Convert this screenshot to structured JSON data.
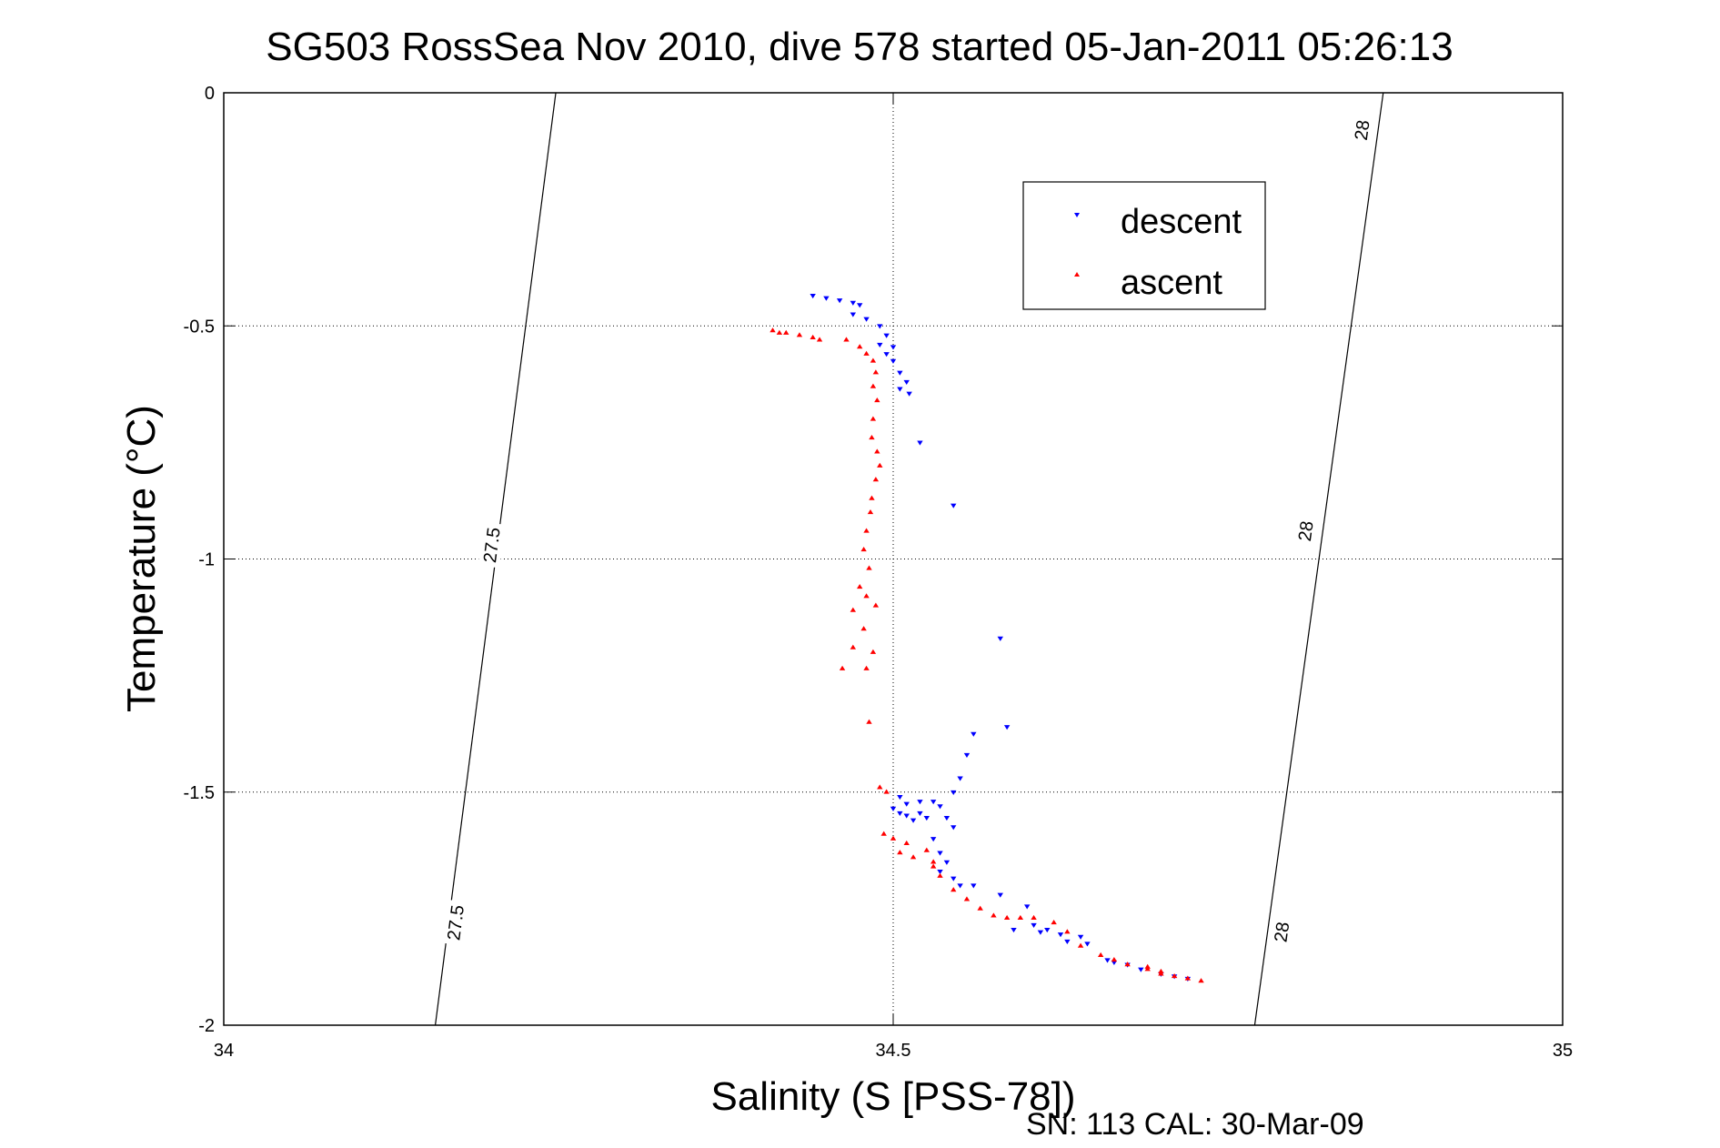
{
  "chart_data": {
    "type": "scatter",
    "title": "SG503 RossSea Nov 2010, dive 578 started 05-Jan-2011 05:26:13",
    "xlabel": "Salinity (S [PSS-78])",
    "ylabel": "Temperature (°C)",
    "xlim": [
      34,
      35
    ],
    "ylim": [
      -2,
      0
    ],
    "xticks": [
      34,
      34.5,
      35
    ],
    "xtick_labels": [
      "34",
      "34.5",
      "35"
    ],
    "yticks": [
      0,
      -0.5,
      -1,
      -1.5,
      -2
    ],
    "ytick_labels": [
      "0",
      "-0.5",
      "-1",
      "-1.5",
      "-2"
    ],
    "grid": true,
    "legend_position": "top-right",
    "series": [
      {
        "name": "descent",
        "marker": "triangle-down",
        "color": "#0000ff",
        "points": [
          [
            34.44,
            -0.435
          ],
          [
            34.45,
            -0.44
          ],
          [
            34.46,
            -0.445
          ],
          [
            34.47,
            -0.45
          ],
          [
            34.475,
            -0.455
          ],
          [
            34.47,
            -0.475
          ],
          [
            34.48,
            -0.485
          ],
          [
            34.49,
            -0.5
          ],
          [
            34.495,
            -0.52
          ],
          [
            34.49,
            -0.54
          ],
          [
            34.5,
            -0.545
          ],
          [
            34.495,
            -0.56
          ],
          [
            34.5,
            -0.575
          ],
          [
            34.505,
            -0.6
          ],
          [
            34.51,
            -0.62
          ],
          [
            34.505,
            -0.635
          ],
          [
            34.512,
            -0.645
          ],
          [
            34.52,
            -0.75
          ],
          [
            34.545,
            -0.885
          ],
          [
            34.58,
            -1.17
          ],
          [
            34.585,
            -1.36
          ],
          [
            34.56,
            -1.375
          ],
          [
            34.555,
            -1.42
          ],
          [
            34.55,
            -1.47
          ],
          [
            34.545,
            -1.5
          ],
          [
            34.505,
            -1.51
          ],
          [
            34.51,
            -1.525
          ],
          [
            34.52,
            -1.52
          ],
          [
            34.53,
            -1.52
          ],
          [
            34.535,
            -1.53
          ],
          [
            34.5,
            -1.535
          ],
          [
            34.505,
            -1.545
          ],
          [
            34.51,
            -1.55
          ],
          [
            34.515,
            -1.56
          ],
          [
            34.52,
            -1.545
          ],
          [
            34.525,
            -1.555
          ],
          [
            34.54,
            -1.555
          ],
          [
            34.545,
            -1.575
          ],
          [
            34.53,
            -1.6
          ],
          [
            34.535,
            -1.63
          ],
          [
            34.54,
            -1.65
          ],
          [
            34.535,
            -1.67
          ],
          [
            34.545,
            -1.685
          ],
          [
            34.55,
            -1.7
          ],
          [
            34.56,
            -1.7
          ],
          [
            34.58,
            -1.72
          ],
          [
            34.6,
            -1.745
          ],
          [
            34.605,
            -1.785
          ],
          [
            34.59,
            -1.795
          ],
          [
            34.61,
            -1.8
          ],
          [
            34.615,
            -1.795
          ],
          [
            34.625,
            -1.805
          ],
          [
            34.64,
            -1.81
          ],
          [
            34.63,
            -1.82
          ],
          [
            34.645,
            -1.825
          ],
          [
            34.66,
            -1.86
          ],
          [
            34.665,
            -1.865
          ],
          [
            34.675,
            -1.87
          ],
          [
            34.685,
            -1.88
          ],
          [
            34.7,
            -1.89
          ],
          [
            34.71,
            -1.895
          ],
          [
            34.72,
            -1.9
          ]
        ]
      },
      {
        "name": "ascent",
        "marker": "triangle-up",
        "color": "#ff0000",
        "points": [
          [
            34.41,
            -0.51
          ],
          [
            34.415,
            -0.515
          ],
          [
            34.42,
            -0.515
          ],
          [
            34.43,
            -0.52
          ],
          [
            34.44,
            -0.525
          ],
          [
            34.445,
            -0.53
          ],
          [
            34.465,
            -0.53
          ],
          [
            34.475,
            -0.545
          ],
          [
            34.48,
            -0.56
          ],
          [
            34.485,
            -0.575
          ],
          [
            34.487,
            -0.6
          ],
          [
            34.485,
            -0.63
          ],
          [
            34.488,
            -0.66
          ],
          [
            34.485,
            -0.7
          ],
          [
            34.484,
            -0.74
          ],
          [
            34.488,
            -0.77
          ],
          [
            34.49,
            -0.8
          ],
          [
            34.487,
            -0.83
          ],
          [
            34.484,
            -0.87
          ],
          [
            34.483,
            -0.9
          ],
          [
            34.48,
            -0.94
          ],
          [
            34.478,
            -0.98
          ],
          [
            34.482,
            -1.02
          ],
          [
            34.475,
            -1.06
          ],
          [
            34.48,
            -1.08
          ],
          [
            34.487,
            -1.1
          ],
          [
            34.47,
            -1.11
          ],
          [
            34.478,
            -1.15
          ],
          [
            34.47,
            -1.19
          ],
          [
            34.462,
            -1.235
          ],
          [
            34.48,
            -1.235
          ],
          [
            34.485,
            -1.2
          ],
          [
            34.482,
            -1.35
          ],
          [
            34.49,
            -1.49
          ],
          [
            34.495,
            -1.5
          ],
          [
            34.493,
            -1.59
          ],
          [
            34.5,
            -1.6
          ],
          [
            34.51,
            -1.61
          ],
          [
            34.505,
            -1.63
          ],
          [
            34.515,
            -1.64
          ],
          [
            34.53,
            -1.65
          ],
          [
            34.525,
            -1.625
          ],
          [
            34.53,
            -1.66
          ],
          [
            34.535,
            -1.68
          ],
          [
            34.545,
            -1.71
          ],
          [
            34.555,
            -1.73
          ],
          [
            34.565,
            -1.75
          ],
          [
            34.575,
            -1.765
          ],
          [
            34.585,
            -1.77
          ],
          [
            34.595,
            -1.77
          ],
          [
            34.605,
            -1.77
          ],
          [
            34.62,
            -1.78
          ],
          [
            34.63,
            -1.8
          ],
          [
            34.64,
            -1.83
          ],
          [
            34.655,
            -1.85
          ],
          [
            34.665,
            -1.86
          ],
          [
            34.675,
            -1.87
          ],
          [
            34.69,
            -1.88
          ],
          [
            34.7,
            -1.89
          ],
          [
            34.71,
            -1.895
          ],
          [
            34.72,
            -1.9
          ],
          [
            34.73,
            -1.905
          ],
          [
            34.7,
            -1.885
          ],
          [
            34.69,
            -1.875
          ]
        ]
      }
    ],
    "density_contours": [
      {
        "level": "27.5",
        "points": [
          [
            34.158,
            -2
          ],
          [
            34.248,
            0
          ]
        ],
        "label_positions": [
          [
            34.173,
            -1.78
          ],
          [
            34.2,
            -0.97
          ]
        ]
      },
      {
        "level": "28",
        "points": [
          [
            34.77,
            -2
          ],
          [
            34.866,
            0
          ]
        ],
        "label_positions": [
          [
            34.79,
            -1.8
          ],
          [
            34.808,
            -0.94
          ],
          [
            34.85,
            -0.08
          ]
        ]
      }
    ],
    "annotation": "SN: 113  CAL: 30-Mar-09"
  }
}
